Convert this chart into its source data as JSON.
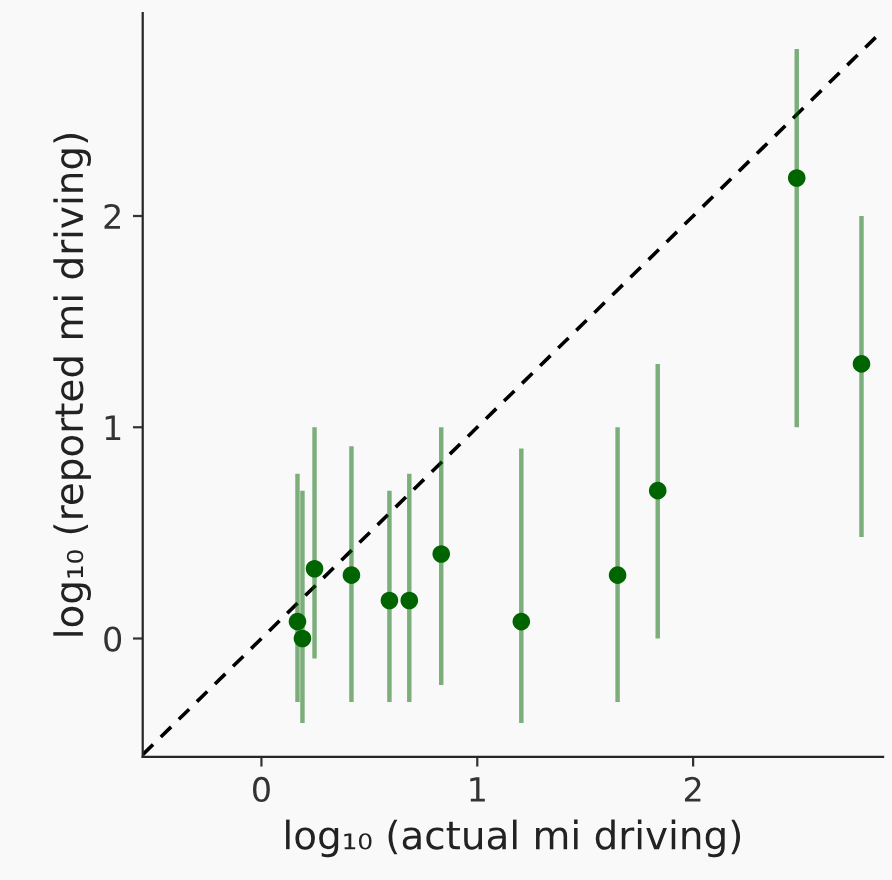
{
  "chart_data": {
    "type": "scatter",
    "xlabel": "log₁₀ (actual mi driving)",
    "ylabel": "log₁₀ (reported mi driving)",
    "xlim": [
      -0.55,
      2.88
    ],
    "ylim": [
      -0.56,
      2.96
    ],
    "xticks": [
      0,
      1,
      2
    ],
    "yticks": [
      0,
      1,
      2
    ],
    "grid": false,
    "marker": "circle",
    "series": [
      {
        "type": "line",
        "color": "#000000",
        "line_style": "dashed",
        "marker": "none",
        "x": [
          -0.55,
          2.88
        ],
        "values": [
          -0.55,
          2.88
        ]
      },
      {
        "color": "#006400",
        "x": [
          0.167,
          0.19,
          0.246,
          0.417,
          0.593,
          0.685,
          0.833,
          1.204,
          1.65,
          1.836,
          2.48,
          2.78
        ],
        "values": [
          0.08,
          0.0,
          0.33,
          0.3,
          0.18,
          0.18,
          0.4,
          0.08,
          0.3,
          0.7,
          2.18,
          1.3
        ],
        "errors": [
          [
            -0.3,
            0.78
          ],
          [
            -0.4,
            0.7
          ],
          [
            -0.095,
            1.0
          ],
          [
            -0.3,
            0.91
          ],
          [
            -0.3,
            0.7
          ],
          [
            -0.3,
            0.78
          ],
          [
            -0.22,
            1.0
          ],
          [
            -0.4,
            0.9
          ],
          [
            -0.3,
            1.0
          ],
          [
            0.0,
            1.3
          ],
          [
            1.0,
            2.79
          ],
          [
            0.48,
            2.0
          ]
        ]
      }
    ]
  }
}
